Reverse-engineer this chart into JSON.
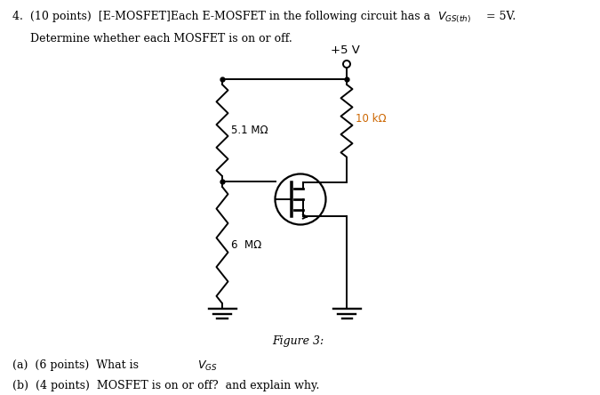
{
  "bg_color": "#ffffff",
  "text_color": "#000000",
  "orange_color": "#cc6600",
  "fig_label": "Figure 3:",
  "label_5v": "+5 V",
  "label_r1": "5.1 MΩ",
  "label_r2": "10 kΩ",
  "label_r3": "6  MΩ",
  "header1a": "4.  (10 points)  [E-MOSFET]Each E-MOSFET in the following circuit has a ",
  "header1b": " = 5V.",
  "header2": "Determine whether each MOSFET is on or off.",
  "part_a": "(a)  (6 points)  What is ",
  "part_b": "(b)  (4 points)  MOSFET is on or off?  and explain why.",
  "lw": 1.4,
  "circuit_xl": 2.5,
  "circuit_xr": 3.9,
  "circuit_yt": 3.55,
  "circuit_yb": 0.75,
  "ygate": 2.2,
  "xmos": 3.38,
  "ymos": 2.2,
  "mosfet_r": 0.285
}
